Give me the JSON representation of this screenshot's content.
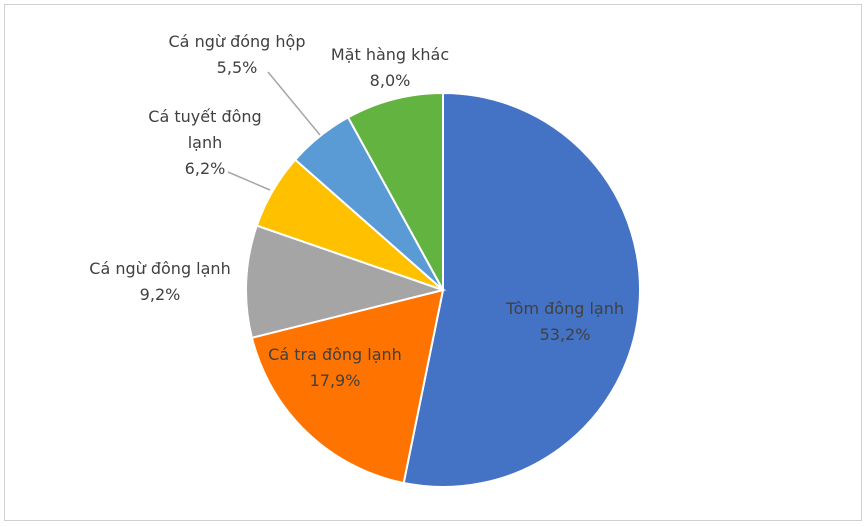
{
  "chart_data": {
    "type": "pie",
    "categories": [
      "Tôm đông lạnh",
      "Cá tra đông lạnh",
      "Cá ngừ đông lạnh",
      "Cá tuyết đông lạnh",
      "Cá ngừ đóng hộp",
      "Mặt hàng khác"
    ],
    "values": [
      53.2,
      17.9,
      9.2,
      6.2,
      5.5,
      8.0
    ],
    "value_labels": [
      "53,2%",
      "17,9%",
      "9,2%",
      "6,2%",
      "5,5%",
      "8,0%"
    ],
    "colors": [
      "#4472c4",
      "#ff7300",
      "#a5a5a5",
      "#ffc000",
      "#5b9bd5",
      "#62b33f"
    ]
  }
}
